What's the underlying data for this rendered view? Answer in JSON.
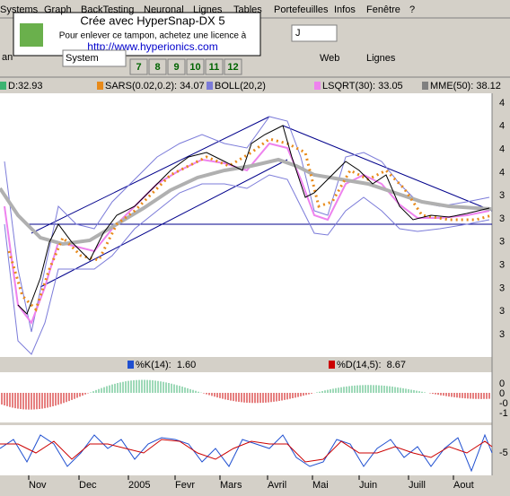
{
  "menu": [
    "Systems",
    "Graph",
    "BackTesting",
    "Neuronal",
    "Lignes",
    "Tables",
    "Portefeuilles",
    "Infos",
    "Fenêtre",
    "?"
  ],
  "watermark": {
    "title": "Crée avec HyperSnap-DX 5",
    "line": "Pour enlever ce tampon, achetez une licence à",
    "url": "http://www.hyperionics.com"
  },
  "toolbar": {
    "symbol": "J",
    "left": "an",
    "system": "System",
    "period_buttons": [
      "7",
      "8",
      "9",
      "10",
      "11",
      "12"
    ],
    "web": "Web",
    "lines": "Lignes"
  },
  "legend": [
    "D:32.93",
    "SARS(0.02,0.2): 34.07",
    "BOLL(20,2)",
    "LSQRT(30): 33.05",
    "MME(50): 38.12"
  ],
  "price_axis": [
    "4",
    "4",
    "4",
    "4",
    "3",
    "3",
    "3",
    "3",
    "3",
    "3",
    "3"
  ],
  "stoch_legend": [
    "%K(14):  1.60",
    "%D(14,5):  8.67"
  ],
  "macd_axis": [
    "0",
    "0",
    "-0",
    "-1"
  ],
  "stoch_axis": [
    "-5"
  ],
  "months": [
    "Nov",
    "Dec",
    "2005",
    "Fevr",
    "Mars",
    "Avril",
    "Mai",
    "Juin",
    "Juill",
    "Aout"
  ]
}
